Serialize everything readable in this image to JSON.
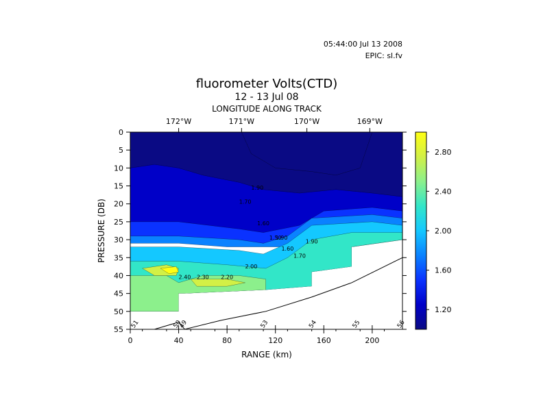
{
  "header": {
    "timestamp": "05:44:00 Jul 13 2008",
    "epic": "EPIC:  sl.fv"
  },
  "chart_data": {
    "type": "heatmap",
    "title": "fluorometer Volts(CTD)",
    "subtitle": "12 - 13 Jul 08",
    "top_axis_label": "LONGITUDE ALONG TRACK",
    "top_ticks": [
      {
        "label": "172°W",
        "range_km": 40
      },
      {
        "label": "171°W",
        "range_km": 92
      },
      {
        "label": "170°W",
        "range_km": 146
      },
      {
        "label": "169°W",
        "range_km": 198
      }
    ],
    "xlabel": "RANGE (km)",
    "ylabel": "PRESSURE (DB)",
    "xlim": [
      0,
      225
    ],
    "ylim": [
      0,
      55
    ],
    "y_reversed": true,
    "x_ticks": [
      0,
      40,
      80,
      120,
      160,
      200
    ],
    "y_ticks": [
      0,
      5,
      10,
      15,
      20,
      25,
      30,
      35,
      40,
      45,
      50,
      55
    ],
    "colorbar": {
      "range": [
        1.0,
        3.0
      ],
      "ticks": [
        "1.20",
        "1.60",
        "2.00",
        "2.40",
        "2.80"
      ],
      "colors": [
        "#0a0a84",
        "#0000c8",
        "#0a32ff",
        "#0a82ff",
        "#14c8ff",
        "#32e6c8",
        "#8cf08c",
        "#d2f046",
        "#ffff14"
      ]
    },
    "contour_labels": [
      "1.90",
      "1.70",
      "1.60",
      "1.50",
      "1.60",
      "1.70",
      "1.90",
      "1.90",
      "2.00",
      "2.20",
      "2.30",
      "2.40"
    ],
    "stations": [
      {
        "label": "51",
        "range_km": 5
      },
      {
        "label": "50",
        "range_km": 40
      },
      {
        "label": "49",
        "range_km": 45
      },
      {
        "label": "53",
        "range_km": 112
      },
      {
        "label": "54",
        "range_km": 152
      },
      {
        "label": "55",
        "range_km": 188
      },
      {
        "label": "56",
        "range_km": 225
      }
    ],
    "bottom_profile": [
      {
        "x": 20,
        "y": 55
      },
      {
        "x": 40,
        "y": 53
      },
      {
        "x": 45,
        "y": 55
      },
      {
        "x": 75,
        "y": 52.5
      },
      {
        "x": 112,
        "y": 50
      },
      {
        "x": 150,
        "y": 46
      },
      {
        "x": 183,
        "y": 42
      },
      {
        "x": 225,
        "y": 35
      }
    ],
    "data_extent": [
      {
        "x": 0,
        "y": 50
      },
      {
        "x": 40,
        "y": 50
      },
      {
        "x": 40,
        "y": 45
      },
      {
        "x": 45,
        "y": 45
      },
      {
        "x": 45,
        "y": 45
      },
      {
        "x": 112,
        "y": 44
      },
      {
        "x": 150,
        "y": 43
      },
      {
        "x": 150,
        "y": 39
      },
      {
        "x": 183,
        "y": 37.5
      },
      {
        "x": 183,
        "y": 32
      },
      {
        "x": 225,
        "y": 32
      },
      {
        "x": 225,
        "y": 30
      }
    ],
    "field": [
      {
        "level": 1,
        "points": [
          [
            0,
            0
          ],
          [
            225,
            0
          ],
          [
            225,
            30
          ],
          [
            183,
            31
          ],
          [
            150,
            32
          ],
          [
            112,
            31
          ],
          [
            80,
            31
          ],
          [
            40,
            30
          ],
          [
            0,
            30
          ]
        ]
      },
      {
        "level": 0,
        "points": [
          [
            0,
            0
          ],
          [
            225,
            0
          ],
          [
            225,
            18
          ],
          [
            200,
            17
          ],
          [
            170,
            16
          ],
          [
            140,
            17
          ],
          [
            110,
            16
          ],
          [
            90,
            14
          ],
          [
            60,
            12
          ],
          [
            40,
            10
          ],
          [
            20,
            9
          ],
          [
            0,
            10
          ]
        ]
      },
      {
        "level": 0,
        "points": [
          [
            92,
            0
          ],
          [
            200,
            0
          ],
          [
            190,
            10
          ],
          [
            170,
            12
          ],
          [
            150,
            11
          ],
          [
            120,
            10
          ],
          [
            100,
            6
          ]
        ]
      },
      {
        "level": 2,
        "points": [
          [
            0,
            25
          ],
          [
            40,
            25
          ],
          [
            90,
            27
          ],
          [
            110,
            28
          ],
          [
            140,
            26
          ],
          [
            160,
            22
          ],
          [
            200,
            21
          ],
          [
            225,
            22
          ],
          [
            225,
            30
          ],
          [
            183,
            31
          ],
          [
            150,
            32
          ],
          [
            112,
            31
          ],
          [
            80,
            31
          ],
          [
            40,
            30
          ],
          [
            0,
            30
          ]
        ]
      },
      {
        "level": 3,
        "points": [
          [
            0,
            29
          ],
          [
            40,
            29
          ],
          [
            90,
            30
          ],
          [
            110,
            31
          ],
          [
            130,
            29
          ],
          [
            150,
            24
          ],
          [
            200,
            23
          ],
          [
            225,
            24
          ],
          [
            225,
            30
          ],
          [
            183,
            31
          ],
          [
            150,
            32
          ],
          [
            112,
            32
          ],
          [
            80,
            32
          ],
          [
            40,
            31
          ],
          [
            0,
            31
          ]
        ]
      },
      {
        "level": 4,
        "points": [
          [
            0,
            32
          ],
          [
            40,
            32
          ],
          [
            90,
            33
          ],
          [
            110,
            34
          ],
          [
            130,
            31
          ],
          [
            150,
            26
          ],
          [
            200,
            25
          ],
          [
            225,
            26
          ],
          [
            225,
            30
          ],
          [
            183,
            32
          ],
          [
            183,
            37.5
          ],
          [
            150,
            39
          ],
          [
            150,
            43
          ],
          [
            112,
            44
          ],
          [
            45,
            45
          ],
          [
            40,
            45
          ],
          [
            40,
            50
          ],
          [
            0,
            50
          ]
        ]
      },
      {
        "level": 5,
        "points": [
          [
            0,
            36
          ],
          [
            40,
            36
          ],
          [
            80,
            37
          ],
          [
            112,
            38
          ],
          [
            130,
            35
          ],
          [
            150,
            30
          ],
          [
            183,
            28
          ],
          [
            225,
            28
          ],
          [
            225,
            30
          ],
          [
            183,
            32
          ],
          [
            183,
            37.5
          ],
          [
            150,
            39
          ],
          [
            150,
            43
          ],
          [
            112,
            44
          ],
          [
            45,
            45
          ],
          [
            40,
            45
          ],
          [
            40,
            50
          ],
          [
            0,
            50
          ]
        ]
      },
      {
        "level": 6,
        "points": [
          [
            0,
            40
          ],
          [
            30,
            40
          ],
          [
            40,
            42
          ],
          [
            60,
            40
          ],
          [
            90,
            40
          ],
          [
            112,
            41
          ],
          [
            112,
            44
          ],
          [
            45,
            45
          ],
          [
            40,
            45
          ],
          [
            40,
            50
          ],
          [
            0,
            50
          ]
        ]
      },
      {
        "level": 7,
        "points": [
          [
            10,
            38
          ],
          [
            30,
            37
          ],
          [
            40,
            38
          ],
          [
            38,
            40
          ],
          [
            20,
            40
          ]
        ]
      },
      {
        "level": 7,
        "points": [
          [
            50,
            41
          ],
          [
            80,
            41
          ],
          [
            95,
            42
          ],
          [
            80,
            43
          ],
          [
            55,
            43
          ]
        ]
      },
      {
        "level": 8,
        "points": [
          [
            25,
            38
          ],
          [
            38,
            37.5
          ],
          [
            40,
            39
          ],
          [
            32,
            39.5
          ]
        ]
      }
    ]
  }
}
